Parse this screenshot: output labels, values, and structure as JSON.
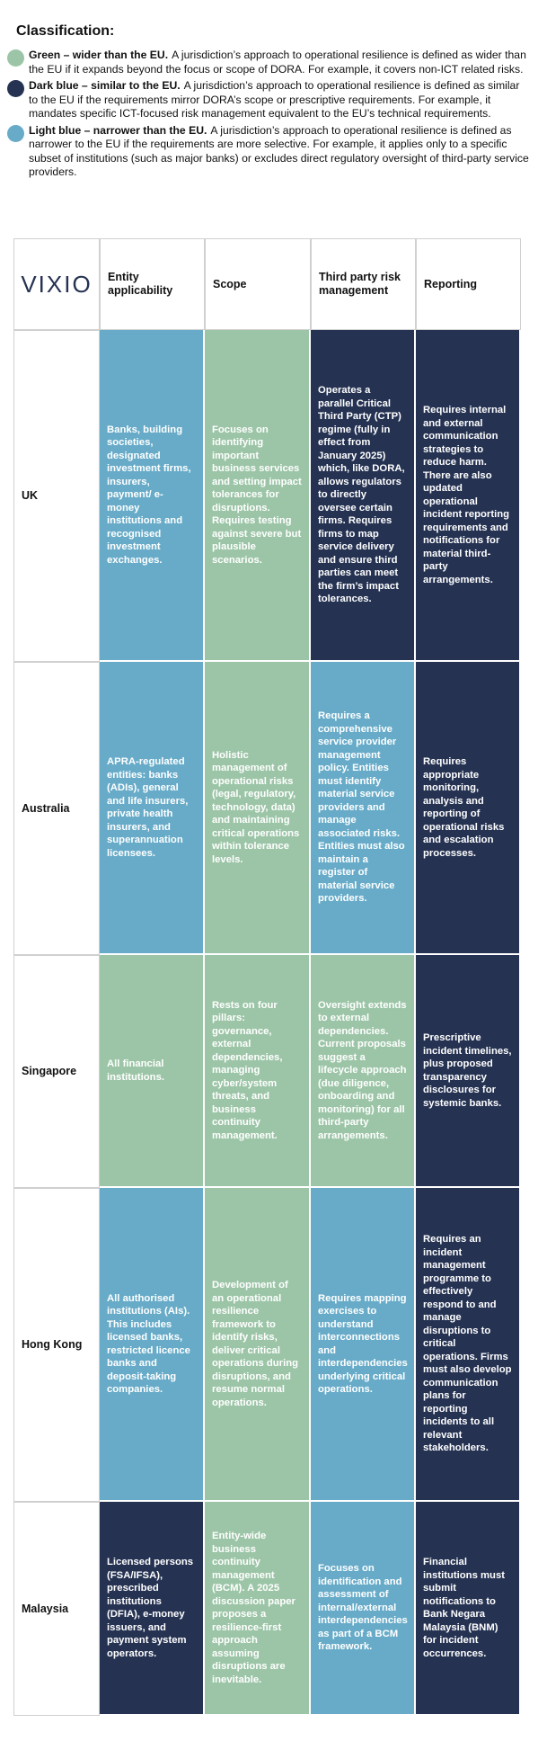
{
  "heading": "Classification:",
  "legend": [
    {
      "color": "#9cc5a7",
      "label": "Green – wider than the EU.",
      "description": "A jurisdiction’s approach to operational resilience is defined as wider than the EU if it expands beyond the focus or scope of DORA. For example, it covers non-ICT related risks."
    },
    {
      "color": "#253252",
      "label": "Dark blue – similar to the EU.",
      "description": "A jurisdiction’s approach to operational resilience is defined as similar to the EU if the requirements mirror DORA’s scope or prescriptive requirements. For example, it mandates specific ICT-focused risk management equivalent to the EU’s technical requirements."
    },
    {
      "color": "#67abc8",
      "label": "Light blue – narrower than the EU.",
      "description": "A jurisdiction’s approach to operational resilience is defined as narrower to the EU if the requirements are more selective. For example, it applies only to a specific subset of institutions (such as major banks) or excludes direct regulatory oversight of third-party service providers."
    }
  ],
  "table": {
    "logo": "VIXIO",
    "headers": [
      "Entity applicability",
      "Scope",
      "Third party risk management",
      "Reporting"
    ],
    "rows": [
      {
        "jurisdiction": "UK",
        "cells": [
          {
            "color": "#67abc8",
            "text": "Banks, building societies, designated investment firms, insurers, payment/ e-money institutions and recognised investment exchanges."
          },
          {
            "color": "#9cc5a7",
            "text": "Focuses on identifying important business services and setting impact tolerances for disruptions. Requires testing against severe but plausible scenarios."
          },
          {
            "color": "#253252",
            "text": "Operates a parallel Critical Third Party (CTP) regime (fully in effect from January 2025) which, like DORA, allows regulators to directly oversee certain firms. Requires firms to map service delivery and ensure third parties can meet the firm’s impact tolerances."
          },
          {
            "color": "#253252",
            "text": "Requires internal and external communication strategies to reduce harm. There are also updated operational incident reporting requirements and notifications for material third-party arrangements."
          }
        ]
      },
      {
        "jurisdiction": "Australia",
        "cells": [
          {
            "color": "#67abc8",
            "text": "APRA-regulated entities: banks (ADIs), general and life insurers, private health insurers, and superannuation licensees."
          },
          {
            "color": "#9cc5a7",
            "text": "Holistic management of operational risks (legal, regulatory, technology, data) and maintaining critical operations within tolerance levels."
          },
          {
            "color": "#67abc8",
            "text": "Requires a comprehensive service provider management policy. Entities must identify material service providers and manage associated risks. Entities must also maintain a register of material service providers."
          },
          {
            "color": "#253252",
            "text": "Requires appropriate monitoring, analysis and reporting of operational risks and escalation processes."
          }
        ]
      },
      {
        "jurisdiction": "Singapore",
        "cells": [
          {
            "color": "#9cc5a7",
            "text": "All financial institutions."
          },
          {
            "color": "#9cc5a7",
            "text": "Rests on four pillars: governance, external dependencies, managing cyber/system threats, and business continuity management."
          },
          {
            "color": "#9cc5a7",
            "text": "Oversight extends to external dependencies. Current proposals suggest a lifecycle approach (due diligence, onboarding and monitoring) for all third-party arrangements."
          },
          {
            "color": "#253252",
            "text": "Prescriptive incident timelines, plus proposed transparency disclosures for systemic banks."
          }
        ]
      },
      {
        "jurisdiction": "Hong Kong",
        "cells": [
          {
            "color": "#67abc8",
            "text": "All authorised institutions (AIs). This includes licensed banks, restricted licence banks and deposit-taking companies."
          },
          {
            "color": "#9cc5a7",
            "text": "Development of an operational resilience framework to identify risks, deliver critical operations during disruptions, and resume normal operations."
          },
          {
            "color": "#67abc8",
            "text": "Requires mapping exercises to understand interconnections and interdependencies underlying critical operations."
          },
          {
            "color": "#253252",
            "text": "Requires an incident management programme to effectively respond to and manage disruptions to critical operations. Firms must also develop communication plans for reporting incidents to all relevant stakeholders."
          }
        ]
      },
      {
        "jurisdiction": "Malaysia",
        "cells": [
          {
            "color": "#253252",
            "text": "Licensed persons (FSA/IFSA), prescribed institutions (DFIA), e-money issuers, and payment system operators."
          },
          {
            "color": "#9cc5a7",
            "text": "Entity-wide business continuity management (BCM). A 2025 discussion paper proposes a resilience-first approach assuming disruptions are inevitable."
          },
          {
            "color": "#67abc8",
            "text": "Focuses on identification and assessment of internal/external interdependencies as part of a BCM framework."
          },
          {
            "color": "#253252",
            "text": "Financial institutions must submit notifications to Bank Negara Malaysia (BNM) for incident occurrences."
          }
        ]
      }
    ]
  }
}
